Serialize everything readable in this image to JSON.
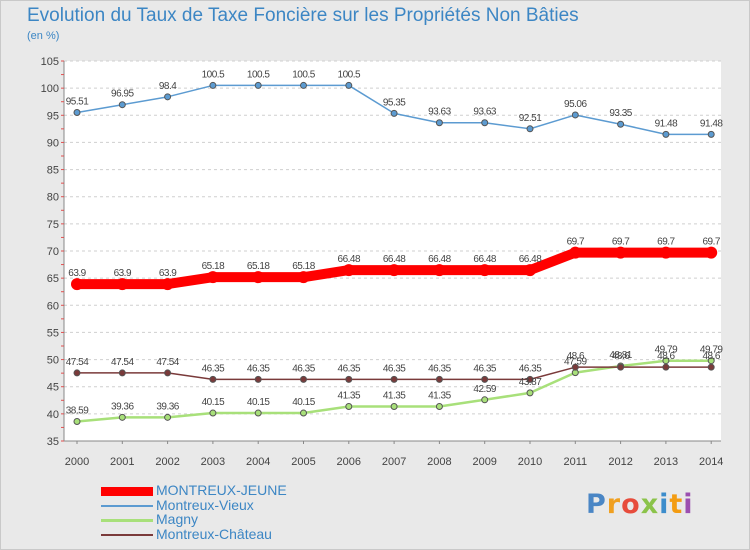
{
  "header": {
    "title": "Evolution du Taux de Taxe Foncière sur les Propriétés Non Bâties",
    "unit": "(en %)"
  },
  "brand": {
    "logo_text": "Proxiti"
  },
  "chart_data": {
    "type": "line",
    "title": "Evolution du Taux de Taxe Foncière sur les Propriétés Non Bâties",
    "ylabel": "(en %)",
    "xlabel": "",
    "categories": [
      2000,
      2001,
      2002,
      2003,
      2004,
      2005,
      2006,
      2007,
      2008,
      2009,
      2010,
      2011,
      2012,
      2013,
      2014
    ],
    "ylim": [
      35,
      105
    ],
    "yticks": [
      35,
      40,
      45,
      50,
      55,
      60,
      65,
      70,
      75,
      80,
      85,
      90,
      95,
      100,
      105
    ],
    "grid": "horizontal dashed",
    "legend_position": "bottom-left",
    "series": [
      {
        "name": "MONTREUX-JEUNE",
        "color": "#ff0000",
        "values": [
          63.9,
          63.9,
          63.9,
          65.18,
          65.18,
          65.18,
          66.48,
          66.48,
          66.48,
          66.48,
          66.48,
          69.7,
          69.7,
          69.7,
          69.7
        ],
        "labels": [
          "63.9",
          "63.9",
          "63.9",
          "65.18",
          "65.18",
          "65.18",
          "66.48",
          "66.48",
          "66.48",
          "66.48",
          "66.48",
          "69.7",
          "69.7",
          "69.7",
          "69.7"
        ],
        "emphasis": "thick"
      },
      {
        "name": "Montreux-Vieux",
        "color": "#5c9bd1",
        "values": [
          95.51,
          96.95,
          98.4,
          100.5,
          100.5,
          100.5,
          100.5,
          95.35,
          93.63,
          93.63,
          92.51,
          95.06,
          93.35,
          91.48,
          91.48
        ],
        "labels": [
          "95.51",
          "96.95",
          "98.4",
          "100.5",
          "100.5",
          "100.5",
          "100.5",
          "95.35",
          "93.63",
          "93.63",
          "92.51",
          "95.06",
          "93.35",
          "91.48",
          "91.48"
        ],
        "emphasis": "thin"
      },
      {
        "name": "Magny",
        "color": "#a8e07a",
        "values": [
          38.59,
          39.36,
          39.36,
          40.15,
          40.15,
          40.15,
          41.35,
          41.35,
          41.35,
          42.59,
          43.87,
          47.59,
          48.81,
          49.79,
          49.79
        ],
        "labels": [
          "38.59",
          "39.36",
          "39.36",
          "40.15",
          "40.15",
          "40.15",
          "41.35",
          "41.35",
          "41.35",
          "42.59",
          "43.87",
          "47.59",
          "48.81",
          "49.79",
          "49.79"
        ],
        "emphasis": "medium"
      },
      {
        "name": "Montreux-Château",
        "color": "#7a3a3a",
        "values": [
          47.54,
          47.54,
          47.54,
          46.35,
          46.35,
          46.35,
          46.35,
          46.35,
          46.35,
          46.35,
          46.35,
          48.6,
          48.6,
          48.6,
          48.6
        ],
        "labels": [
          "47.54",
          "47.54",
          "47.54",
          "46.35",
          "46.35",
          "46.35",
          "46.35",
          "46.35",
          "46.35",
          "46.35",
          "46.35",
          "48.6",
          "48.6",
          "48.6",
          "48.6"
        ],
        "emphasis": "thin"
      }
    ]
  }
}
